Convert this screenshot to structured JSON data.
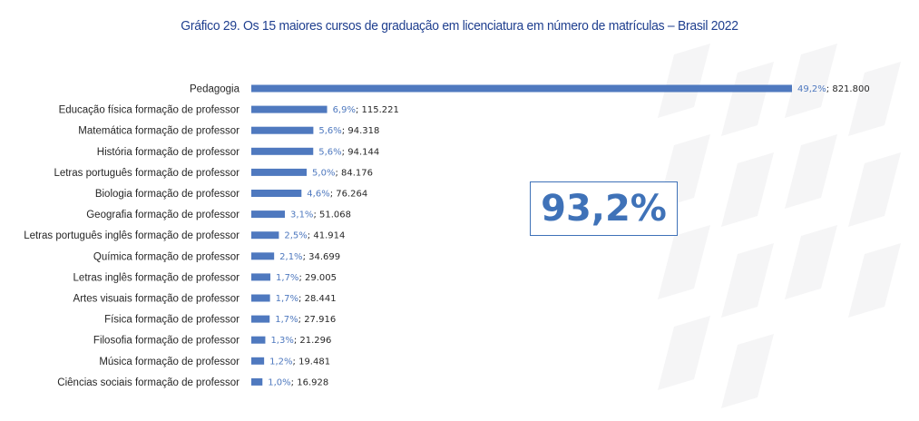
{
  "title": "Gráfico 29. Os 15 maiores cursos de graduação em licenciatura em número de matrículas – Brasil 2022",
  "callout": "93,2%",
  "colors": {
    "bar": "#4f79bf",
    "title": "#1f3f8f",
    "percent_label": "#4f79bf",
    "callout_text": "#3f72b8",
    "watermark": "#ececef"
  },
  "chart_data": {
    "type": "bar",
    "orientation": "horizontal",
    "categories": [
      "Pedagogia",
      "Educação física formação de professor",
      "Matemática formação de professor",
      "História formação de professor",
      "Letras português formação de professor",
      "Biologia formação de professor",
      "Geografia formação de professor",
      "Letras português inglês formação de professor",
      "Química formação de professor",
      "Letras inglês formação de professor",
      "Artes visuais formação de professor",
      "Física formação de professor",
      "Filosofia formação de professor",
      "Música formação de professor",
      "Ciências sociais formação de professor"
    ],
    "values": [
      821800,
      115221,
      94318,
      94144,
      84176,
      76264,
      51068,
      41914,
      34699,
      29005,
      28441,
      27916,
      21296,
      19481,
      16928
    ],
    "percent_labels": [
      "49,2%",
      "6,9%",
      "5,6%",
      "5,6%",
      "5,0%",
      "4,6%",
      "3,1%",
      "2,5%",
      "2,1%",
      "1,7%",
      "1,7%",
      "1,7%",
      "1,3%",
      "1,2%",
      "1,0%"
    ],
    "value_labels": [
      "821.800",
      "115.221",
      "94.318",
      "94.144",
      "84.176",
      "76.264",
      "51.068",
      "41.914",
      "34.699",
      "29.005",
      "28.441",
      "27.916",
      "21.296",
      "19.481",
      "16.928"
    ],
    "xlim": [
      0,
      821800
    ],
    "grid": false,
    "legend": "none"
  }
}
